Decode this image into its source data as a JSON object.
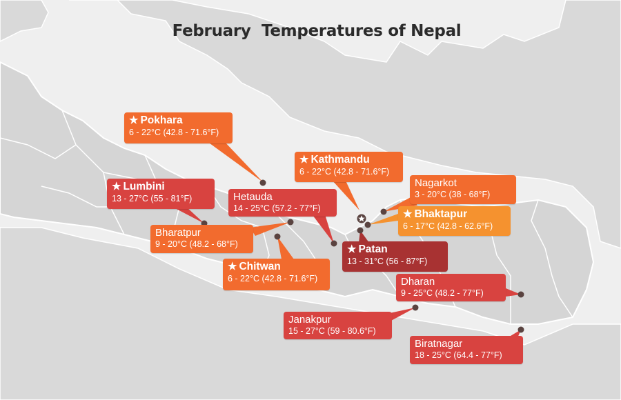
{
  "title": "February  Temperatures of Nepal",
  "colors": {
    "background": "#efefef",
    "land": "#d9d9d9",
    "border": "#ffffff",
    "dot": "#5a4340",
    "orange": "#f26b2e",
    "light_orange": "#f5922f",
    "red": "#d84340",
    "dark_red": "#a83232"
  },
  "cities": [
    {
      "id": "pokhara",
      "name": "Pokhara",
      "temp": "6 - 22°C (42.8 - 71.6°F)",
      "capital_star": true,
      "color": "#f26b2e"
    },
    {
      "id": "kathmandu",
      "name": "Kathmandu",
      "temp": "6 - 22°C (42.8 - 71.6°F)",
      "capital_star": true,
      "color": "#f26b2e"
    },
    {
      "id": "nagarkot",
      "name": "Nagarkot",
      "temp": "3 - 20°C (38 - 68°F)",
      "capital_star": false,
      "color": "#f26b2e"
    },
    {
      "id": "lumbini",
      "name": "Lumbini",
      "temp": "13 - 27°C (55 - 81°F)",
      "capital_star": true,
      "color": "#d84340"
    },
    {
      "id": "hetauda",
      "name": "Hetauda",
      "temp": "14 - 25°C (57.2 - 77°F)",
      "capital_star": false,
      "color": "#d84340"
    },
    {
      "id": "bhaktapur",
      "name": "Bhaktapur",
      "temp": "6 - 17°C (42.8 - 62.6°F)",
      "capital_star": true,
      "color": "#f5922f"
    },
    {
      "id": "bharatpur",
      "name": "Bharatpur",
      "temp": "9 - 20°C (48.2 - 68°F)",
      "capital_star": false,
      "color": "#f26b2e"
    },
    {
      "id": "patan",
      "name": "Patan",
      "temp": "13 - 31°C (56 - 87°F)",
      "capital_star": true,
      "color": "#a83232"
    },
    {
      "id": "chitwan",
      "name": "Chitwan",
      "temp": "6 - 22°C (42.8 - 71.6°F)",
      "capital_star": true,
      "color": "#f26b2e"
    },
    {
      "id": "dharan",
      "name": "Dharan",
      "temp": "9 - 25°C (48.2 - 77°F)",
      "capital_star": false,
      "color": "#d84340"
    },
    {
      "id": "janakpur",
      "name": "Janakpur",
      "temp": "15 - 27°C (59 - 80.6°F)",
      "capital_star": false,
      "color": "#d84340"
    },
    {
      "id": "biratnagar",
      "name": "Biratnagar",
      "temp": "18 - 25°C (64.4 - 77°F)",
      "capital_star": false,
      "color": "#d84340"
    }
  ]
}
